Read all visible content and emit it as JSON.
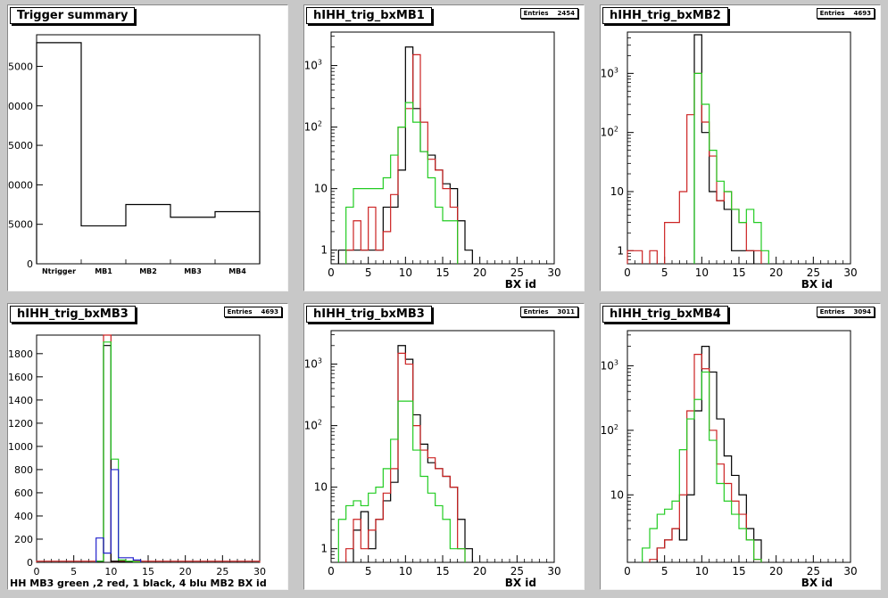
{
  "chart_data": [
    {
      "type": "histogram",
      "title": "Trigger summary",
      "categories": [
        "Ntrigger",
        "MB1",
        "MB2",
        "MB3",
        "MB4"
      ],
      "xlim": [
        0,
        5
      ],
      "ylim": [
        0,
        29000
      ],
      "y_ticks": [
        0,
        5000,
        10000,
        15000,
        20000,
        25000
      ],
      "y_tick_labels": [
        "0",
        "5000",
        "10000",
        "15000",
        "20000",
        "25000"
      ],
      "logy": false,
      "series": [
        {
          "color": "#000000",
          "x": [
            0,
            1,
            2,
            3,
            4
          ],
          "values": [
            28000,
            4800,
            7500,
            5900,
            6600
          ]
        }
      ]
    },
    {
      "type": "histogram",
      "title": "hIHH_trig_bxMB1",
      "stats": {
        "label": "Entries",
        "value": "2454"
      },
      "xlabel": "BX id",
      "xlim": [
        0,
        30
      ],
      "x_ticks": [
        0,
        5,
        10,
        15,
        20,
        25,
        30
      ],
      "ylim": [
        0.6,
        3500
      ],
      "logy": true,
      "y_ticks": [
        1,
        10,
        100,
        1000
      ],
      "y_tick_labels": [
        "1",
        "10",
        "10^2",
        "10^3"
      ],
      "series": [
        {
          "color": "#000000",
          "x": [
            1,
            2,
            3,
            4,
            5,
            6,
            7,
            8,
            9,
            10,
            11,
            12,
            13,
            14,
            15,
            16,
            17,
            18
          ],
          "values": [
            1,
            1,
            1,
            1,
            1,
            1,
            5,
            5,
            20,
            2000,
            200,
            40,
            35,
            20,
            12,
            10,
            3,
            1
          ]
        },
        {
          "color": "#cc2222",
          "x": [
            2,
            3,
            4,
            5,
            6,
            7,
            8,
            9,
            10,
            11,
            12,
            13,
            14,
            15,
            16
          ],
          "values": [
            1,
            3,
            1,
            5,
            1,
            2,
            8,
            100,
            200,
            1500,
            120,
            30,
            20,
            10,
            5
          ]
        },
        {
          "color": "#22cc22",
          "x": [
            2,
            3,
            4,
            5,
            6,
            7,
            8,
            9,
            10,
            11,
            12,
            13,
            14,
            15,
            16
          ],
          "values": [
            5,
            10,
            10,
            10,
            10,
            15,
            35,
            100,
            250,
            120,
            40,
            15,
            5,
            3,
            3
          ]
        }
      ]
    },
    {
      "type": "histogram",
      "title": "hIHH_trig_bxMB2",
      "stats": {
        "label": "Entries",
        "value": "4693"
      },
      "xlabel": "BX id",
      "xlim": [
        0,
        30
      ],
      "x_ticks": [
        0,
        5,
        10,
        15,
        20,
        25,
        30
      ],
      "ylim": [
        0.6,
        5000
      ],
      "logy": true,
      "y_ticks": [
        1,
        10,
        100,
        1000
      ],
      "y_tick_labels": [
        "1",
        "10",
        "10^2",
        "10^3"
      ],
      "series": [
        {
          "color": "#000000",
          "x": [
            9,
            10,
            11,
            12,
            13,
            14,
            15,
            16
          ],
          "values": [
            4500,
            100,
            10,
            7,
            5,
            1,
            1,
            1
          ]
        },
        {
          "color": "#cc2222",
          "x": [
            0,
            1,
            3,
            5,
            6,
            7,
            8,
            9,
            10,
            11,
            12,
            13,
            14,
            15,
            16,
            17
          ],
          "values": [
            1,
            1,
            1,
            3,
            3,
            10,
            200,
            1000,
            150,
            40,
            7,
            10,
            5,
            3,
            1,
            1
          ]
        },
        {
          "color": "#22cc22",
          "x": [
            9,
            10,
            11,
            12,
            13,
            14,
            15,
            16,
            17,
            18
          ],
          "values": [
            1000,
            300,
            50,
            15,
            10,
            5,
            3,
            5,
            3,
            1
          ]
        }
      ]
    },
    {
      "type": "histogram",
      "title": "hIHH_trig_bxMB3",
      "stats": {
        "label": "Entries",
        "value": "4693"
      },
      "xlabel": "HH  MB3 green ,2 red, 1 black, 4 blu    MB2 BX id",
      "xlim": [
        0,
        30
      ],
      "x_ticks": [
        0,
        5,
        10,
        15,
        20,
        25,
        30
      ],
      "ylim": [
        0,
        1960
      ],
      "logy": false,
      "y_ticks": [
        0,
        200,
        400,
        600,
        800,
        1000,
        1200,
        1400,
        1600,
        1800
      ],
      "y_tick_labels": [
        "0",
        "200",
        "400",
        "600",
        "800",
        "1000",
        "1200",
        "1400",
        "1600",
        "1800"
      ],
      "series": [
        {
          "color": "#cc2222",
          "x": [
            0,
            1,
            2,
            3,
            4,
            5,
            6,
            7,
            8,
            9,
            10,
            11,
            12,
            13,
            14,
            15,
            16,
            17,
            18,
            19,
            20,
            21,
            22,
            23,
            24,
            25,
            26,
            27,
            28,
            29
          ],
          "values": [
            10,
            10,
            10,
            10,
            10,
            10,
            10,
            10,
            10,
            1960,
            10,
            10,
            10,
            10,
            10,
            10,
            10,
            10,
            10,
            10,
            10,
            10,
            10,
            10,
            10,
            10,
            10,
            10,
            10,
            10
          ]
        },
        {
          "color": "#000000",
          "x": [
            8,
            9,
            10,
            11,
            12,
            13
          ],
          "values": [
            10,
            1870,
            10,
            5,
            5,
            3
          ]
        },
        {
          "color": "#22cc22",
          "x": [
            8,
            9,
            10,
            11,
            12,
            13
          ],
          "values": [
            10,
            1900,
            890,
            20,
            10,
            5
          ]
        },
        {
          "color": "#2222cc",
          "x": [
            8,
            9,
            10,
            11,
            12,
            13
          ],
          "values": [
            210,
            80,
            800,
            40,
            40,
            20
          ]
        }
      ]
    },
    {
      "type": "histogram",
      "title": "hIHH_trig_bxMB3",
      "stats": {
        "label": "Entries",
        "value": "3011"
      },
      "xlabel": "BX id",
      "xlim": [
        0,
        30
      ],
      "x_ticks": [
        0,
        5,
        10,
        15,
        20,
        25,
        30
      ],
      "ylim": [
        0.6,
        3500
      ],
      "logy": true,
      "y_ticks": [
        1,
        10,
        100,
        1000
      ],
      "y_tick_labels": [
        "1",
        "10",
        "10^2",
        "10^3"
      ],
      "series": [
        {
          "color": "#000000",
          "x": [
            3,
            4,
            5,
            6,
            7,
            8,
            9,
            10,
            11,
            12,
            13,
            14,
            15,
            16,
            17,
            18
          ],
          "values": [
            2,
            4,
            1,
            3,
            6,
            12,
            2000,
            1200,
            150,
            50,
            25,
            20,
            15,
            10,
            3,
            1
          ]
        },
        {
          "color": "#cc2222",
          "x": [
            2,
            3,
            4,
            5,
            6,
            7,
            8,
            9,
            10,
            11,
            12,
            13,
            14,
            15,
            16,
            17
          ],
          "values": [
            1,
            3,
            1,
            2,
            3,
            8,
            20,
            1500,
            1000,
            100,
            40,
            30,
            20,
            15,
            10,
            1
          ]
        },
        {
          "color": "#22cc22",
          "x": [
            1,
            2,
            3,
            4,
            5,
            6,
            7,
            8,
            9,
            10,
            11,
            12,
            13,
            14,
            15,
            16,
            17
          ],
          "values": [
            3,
            5,
            6,
            5,
            8,
            10,
            20,
            60,
            250,
            250,
            40,
            15,
            8,
            5,
            3,
            1,
            1
          ]
        }
      ]
    },
    {
      "type": "histogram",
      "title": "hIHH_trig_bxMB4",
      "stats": {
        "label": "Entries",
        "value": "3094"
      },
      "xlabel": "BX id",
      "xlim": [
        0,
        30
      ],
      "x_ticks": [
        0,
        5,
        10,
        15,
        20,
        25,
        30
      ],
      "ylim": [
        0.9,
        3500
      ],
      "logy": true,
      "y_ticks": [
        10,
        100,
        1000
      ],
      "y_tick_labels": [
        "10",
        "10^2",
        "10^3"
      ],
      "series": [
        {
          "color": "#000000",
          "x": [
            4,
            5,
            6,
            7,
            8,
            9,
            10,
            11,
            12,
            13,
            14,
            15,
            16,
            17
          ],
          "values": [
            1.5,
            2,
            3,
            2,
            10,
            200,
            2000,
            800,
            150,
            40,
            20,
            10,
            3,
            2
          ]
        },
        {
          "color": "#cc2222",
          "x": [
            3,
            4,
            5,
            6,
            7,
            8,
            9,
            10,
            11,
            12,
            13,
            14,
            15,
            16,
            17
          ],
          "values": [
            1,
            1.5,
            2,
            3,
            10,
            200,
            1500,
            900,
            100,
            30,
            15,
            8,
            5,
            2,
            1
          ]
        },
        {
          "color": "#22cc22",
          "x": [
            2,
            3,
            4,
            5,
            6,
            7,
            8,
            9,
            10,
            11,
            12,
            13,
            14,
            15,
            16,
            17
          ],
          "values": [
            1.5,
            3,
            5,
            6,
            8,
            50,
            150,
            300,
            800,
            70,
            15,
            8,
            5,
            3,
            2,
            1
          ]
        }
      ]
    }
  ]
}
